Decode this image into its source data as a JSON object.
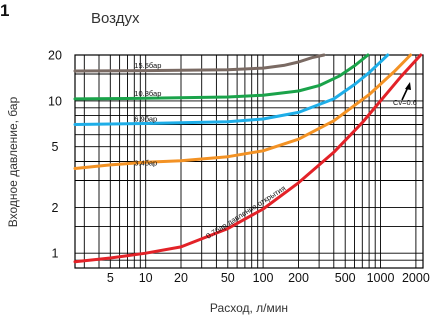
{
  "figure_marker": "1",
  "chart_data": {
    "type": "line",
    "title": "Воздух",
    "xlabel": "Расход, л/мин",
    "ylabel": "Входное давление, бар",
    "x_scale": "log",
    "y_scale": "log",
    "xlim": [
      2.5,
      2300
    ],
    "ylim": [
      0.8,
      20
    ],
    "x_ticks": [
      5,
      10,
      20,
      50,
      100,
      200,
      500,
      1000,
      2000
    ],
    "x_tick_labels": [
      "5",
      "10",
      "20",
      "50",
      "100",
      "200",
      "500",
      "1000",
      "2000"
    ],
    "y_ticks": [
      1,
      2,
      5,
      10,
      20
    ],
    "y_tick_labels": [
      "1",
      "2",
      "5",
      "10",
      "20"
    ],
    "grid": true,
    "series": [
      {
        "name": "15.5бар",
        "color": "#7a6a63",
        "x": [
          2.5,
          10,
          50,
          100,
          150,
          200,
          260,
          330
        ],
        "y": [
          15.7,
          15.8,
          16.0,
          16.4,
          17.1,
          18.0,
          19.2,
          20
        ]
      },
      {
        "name": "10.3бар",
        "color": "#1aa34a",
        "x": [
          2.5,
          10,
          50,
          100,
          200,
          300,
          450,
          600,
          780
        ],
        "y": [
          10.3,
          10.4,
          10.6,
          10.9,
          11.6,
          12.6,
          14.6,
          17.0,
          20
        ]
      },
      {
        "name": "6.9бар",
        "color": "#1eaee8",
        "x": [
          2.5,
          10,
          50,
          100,
          200,
          400,
          600,
          800,
          1150
        ],
        "y": [
          7.0,
          7.1,
          7.3,
          7.6,
          8.4,
          10.3,
          12.8,
          15.3,
          20
        ]
      },
      {
        "name": "3.4бар",
        "color": "#f39224",
        "x": [
          2.5,
          5,
          10,
          20,
          50,
          100,
          200,
          400,
          800,
          1300,
          1800
        ],
        "y": [
          3.6,
          3.8,
          3.95,
          4.05,
          4.3,
          4.7,
          5.6,
          7.4,
          11.0,
          15.5,
          20
        ]
      },
      {
        "name": "0.7бар давление открытия",
        "color": "#e32228",
        "x": [
          2.5,
          5,
          10,
          20,
          50,
          100,
          200,
          400,
          700,
          1000,
          1500,
          2200
        ],
        "y": [
          0.88,
          0.93,
          1.0,
          1.1,
          1.45,
          1.95,
          2.9,
          4.6,
          7.2,
          10.0,
          14.5,
          20
        ]
      }
    ],
    "annotations": [
      {
        "text": "Cv=0.6",
        "x": 1700,
        "y": 10.5
      }
    ]
  }
}
